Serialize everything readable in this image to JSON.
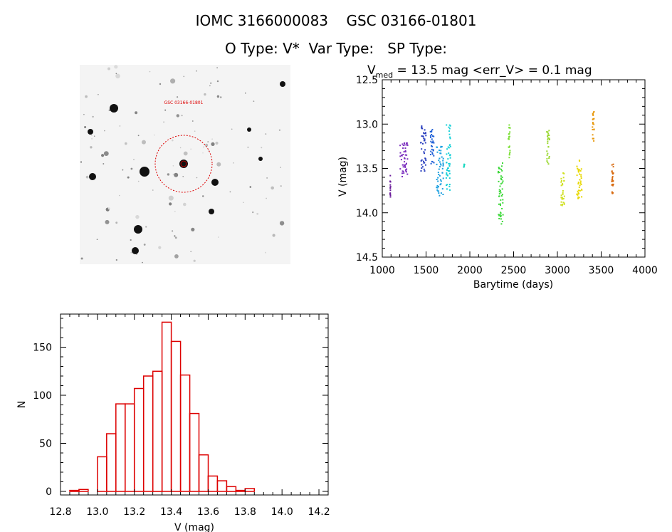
{
  "header": {
    "line1": "IOMC 3166000083    GSC 03166-01801",
    "line2": "O Type: V*  Var Type:   SP Type:"
  },
  "finder": {
    "target_label": "GSC 03166-01801",
    "circle_color": "#dd0000"
  },
  "chart_data": [
    {
      "type": "scatter",
      "title_prefix": "V",
      "title_subscript": "med",
      "title_rest": " = 13.5 mag <err_V> = 0.1 mag",
      "xlabel": "Barytime (days)",
      "ylabel": "V (mag)",
      "xlim": [
        1000,
        4000
      ],
      "ylim": [
        14.5,
        12.5
      ],
      "y_inverted": true,
      "xticks": [
        1000,
        1500,
        2000,
        2500,
        3000,
        3500,
        4000
      ],
      "xtick_labels": [
        "1000",
        "1500",
        "2000",
        "2500",
        "3000",
        "3500",
        "4000"
      ],
      "yticks": [
        12.5,
        13.0,
        13.5,
        14.0,
        14.5
      ],
      "ytick_labels": [
        "12.5",
        "13.0",
        "13.5",
        "14.0",
        "14.5"
      ],
      "grid": false,
      "clusters": [
        {
          "x": [
            1090,
            1095
          ],
          "y": [
            13.55,
            13.85
          ],
          "color": "#6a1b9a"
        },
        {
          "x": [
            1200,
            1290
          ],
          "y": [
            13.2,
            13.6
          ],
          "color": "#7b2fbe"
        },
        {
          "x": [
            1440,
            1500
          ],
          "y": [
            13.0,
            13.55
          ],
          "color": "#2a3fbf"
        },
        {
          "x": [
            1550,
            1590
          ],
          "y": [
            13.05,
            13.45
          ],
          "color": "#1e5fd6"
        },
        {
          "x": [
            1620,
            1700
          ],
          "y": [
            13.25,
            13.85
          ],
          "color": "#1a9fe0"
        },
        {
          "x": [
            1730,
            1780
          ],
          "y": [
            13.0,
            13.75
          ],
          "color": "#17d0d8"
        },
        {
          "x": [
            1930,
            1940
          ],
          "y": [
            13.45,
            13.52
          ],
          "color": "#19d8c0"
        },
        {
          "x": [
            2320,
            2380
          ],
          "y": [
            13.4,
            14.15
          ],
          "color": "#3ed83a"
        },
        {
          "x": [
            2440,
            2460
          ],
          "y": [
            13.0,
            13.4
          ],
          "color": "#7ee03a"
        },
        {
          "x": [
            2880,
            2910
          ],
          "y": [
            13.05,
            13.45
          ],
          "color": "#9ad830"
        },
        {
          "x": [
            3040,
            3080
          ],
          "y": [
            13.55,
            13.95
          ],
          "color": "#d0e020"
        },
        {
          "x": [
            3220,
            3280
          ],
          "y": [
            13.4,
            13.85
          ],
          "color": "#e8d800"
        },
        {
          "x": [
            3400,
            3420
          ],
          "y": [
            12.85,
            13.2
          ],
          "color": "#e89a10"
        },
        {
          "x": [
            3620,
            3640
          ],
          "y": [
            13.45,
            13.85
          ],
          "color": "#d86a10"
        }
      ]
    },
    {
      "type": "bar",
      "subtype": "histogram",
      "xlabel": "V (mag)",
      "ylabel": "N",
      "xlim": [
        12.8,
        14.25
      ],
      "ylim": [
        0,
        180
      ],
      "xticks": [
        12.8,
        13.0,
        13.2,
        13.4,
        13.6,
        13.8,
        14.0,
        14.2
      ],
      "xtick_labels": [
        "12.8",
        "13.0",
        "13.2",
        "13.4",
        "13.6",
        "13.8",
        "14.0",
        "14.2"
      ],
      "yticks": [
        0,
        50,
        100,
        150
      ],
      "ytick_labels": [
        "0",
        "50",
        "100",
        "150"
      ],
      "bin_width": 0.05,
      "bin_starts": [
        12.85,
        12.9,
        12.95,
        13.0,
        13.05,
        13.1,
        13.15,
        13.2,
        13.25,
        13.3,
        13.35,
        13.4,
        13.45,
        13.5,
        13.55,
        13.6,
        13.65,
        13.7,
        13.75,
        13.8,
        13.85,
        13.9,
        13.95,
        14.0,
        14.05,
        14.1
      ],
      "values": [
        1,
        2,
        0,
        36,
        60,
        91,
        91,
        107,
        120,
        125,
        176,
        156,
        121,
        81,
        38,
        16,
        11,
        5,
        1,
        3,
        0,
        0,
        0,
        0,
        0,
        0
      ],
      "grid": false,
      "bar_color": "#dd0000"
    }
  ]
}
